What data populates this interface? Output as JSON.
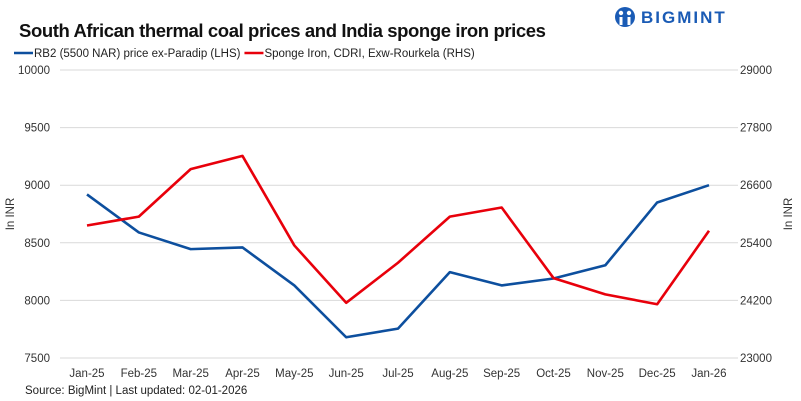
{
  "chart_data": {
    "type": "line",
    "title": "South African thermal coal prices and India sponge iron prices",
    "categories": [
      "Jan-25",
      "Feb-25",
      "Mar-25",
      "Apr-25",
      "May-25",
      "Jun-25",
      "Jul-25",
      "Aug-25",
      "Sep-25",
      "Oct-25",
      "Nov-25",
      "Dec-25",
      "Jan-26"
    ],
    "series": [
      {
        "name": "RB2 (5500 NAR) price ex-Paradip (LHS)",
        "axis": "left",
        "color": "#0d4f9e",
        "values": [
          8920,
          8590,
          8445,
          8460,
          8130,
          7680,
          7755,
          8245,
          8130,
          8190,
          8305,
          8850,
          9000
        ]
      },
      {
        "name": "Sponge Iron, CDRI, Exw-Rourkela (RHS)",
        "axis": "right",
        "color": "#e8000b",
        "values": [
          25760,
          25945,
          26935,
          27210,
          25345,
          24150,
          24985,
          25945,
          26135,
          24665,
          24325,
          24120,
          25650
        ]
      }
    ],
    "ylabel_left": "In INR",
    "ylabel_right": "In INR",
    "ylim_left": [
      7500,
      10000
    ],
    "yticks_left": [
      7500,
      8000,
      8500,
      9000,
      9500,
      10000
    ],
    "ylim_right": [
      23000,
      29000
    ],
    "yticks_right": [
      23000,
      24200,
      25400,
      26600,
      27800,
      29000
    ],
    "grid": true,
    "legend_placement": "top-left"
  },
  "source": "Source: BigMint | Last updated: 02-01-2026",
  "logo_text": "BIGMINT"
}
